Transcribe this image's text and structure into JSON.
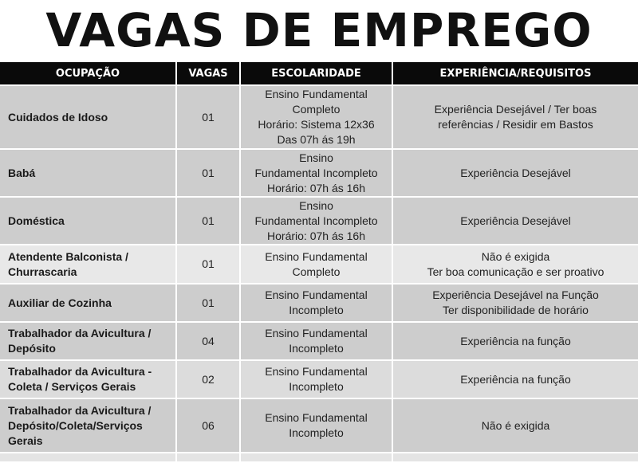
{
  "title": "VAGAS DE EMPREGO",
  "headers": [
    "OCUPAÇÃO",
    "VAGAS",
    "ESCOLARIDADE",
    "EXPERIÊNCIA/REQUISITOS"
  ],
  "rows": [
    {
      "ocupacao": [
        "Cuidados de Idoso"
      ],
      "vagas": "01",
      "escolaridade": [
        "Ensino Fundamental",
        "Completo",
        "Horário: Sistema 12x36",
        "Das 07h ás 19h"
      ],
      "requisitos": [
        "Experiência Desejável / Ter boas",
        "referências / Residir em Bastos"
      ]
    },
    {
      "ocupacao": [
        "Babá"
      ],
      "vagas": "01",
      "escolaridade": [
        "Ensino",
        "Fundamental Incompleto",
        "Horário: 07h ás 16h"
      ],
      "requisitos": [
        "Experiência Desejável"
      ]
    },
    {
      "ocupacao": [
        "Doméstica"
      ],
      "vagas": "01",
      "escolaridade": [
        "Ensino",
        "Fundamental Incompleto",
        "Horário: 07h ás 16h"
      ],
      "requisitos": [
        "Experiência Desejável"
      ]
    },
    {
      "ocupacao": [
        "Atendente Balconista /",
        "Churrascaria"
      ],
      "vagas": "01",
      "escolaridade": [
        "Ensino Fundamental",
        "Completo"
      ],
      "requisitos": [
        "Não é exigida",
        "Ter boa comunicação e ser proativo"
      ]
    },
    {
      "ocupacao": [
        "Auxiliar de Cozinha"
      ],
      "vagas": "01",
      "escolaridade": [
        "Ensino Fundamental",
        "Incompleto"
      ],
      "requisitos": [
        "Experiência Desejável na Função",
        "Ter disponibilidade de horário"
      ]
    },
    {
      "ocupacao": [
        "Trabalhador da Avicultura /",
        "Depósito"
      ],
      "vagas": "04",
      "escolaridade": [
        "Ensino Fundamental",
        "Incompleto"
      ],
      "requisitos": [
        "Experiência na função"
      ]
    },
    {
      "ocupacao": [
        "Trabalhador da Avicultura -",
        "Coleta / Serviços Gerais"
      ],
      "vagas": "02",
      "escolaridade": [
        "Ensino Fundamental",
        "Incompleto"
      ],
      "requisitos": [
        "Experiência na função"
      ]
    },
    {
      "ocupacao": [
        "Trabalhador da Avicultura /",
        "Depósito/Coleta/Serviços",
        "Gerais"
      ],
      "vagas": "06",
      "escolaridade": [
        "Ensino Fundamental",
        "Incompleto"
      ],
      "requisitos": [
        "Não é exigida"
      ]
    }
  ]
}
